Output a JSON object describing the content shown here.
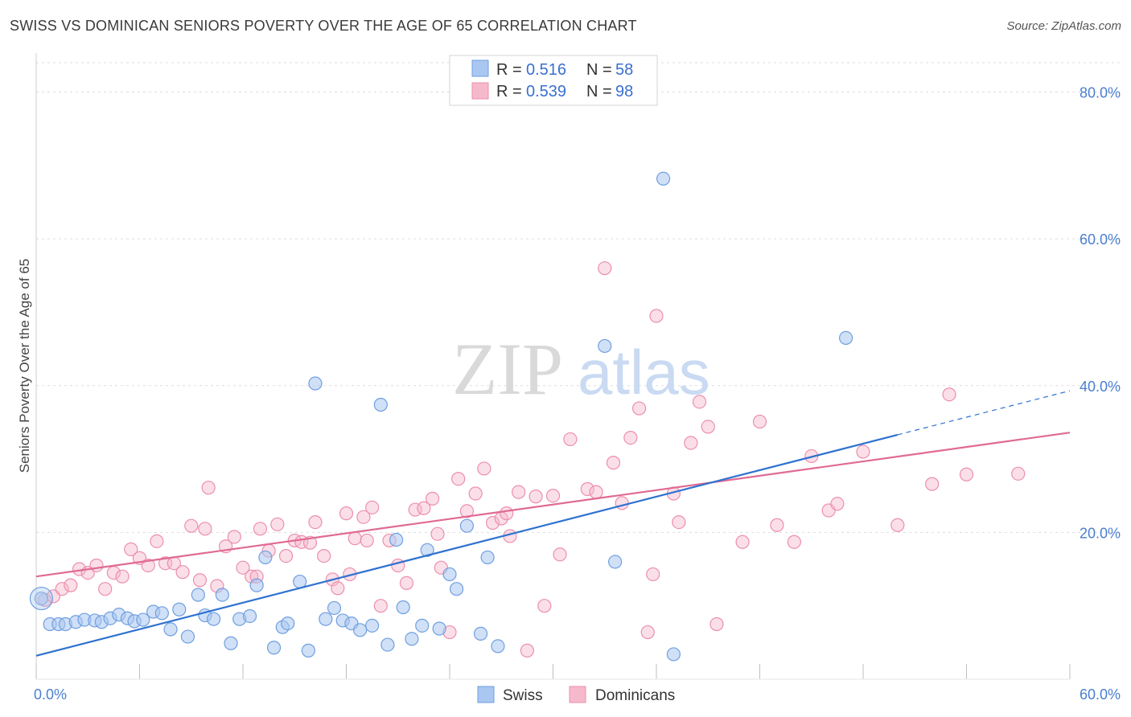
{
  "title": "SWISS VS DOMINICAN SENIORS POVERTY OVER THE AGE OF 65 CORRELATION CHART",
  "source": "Source: ZipAtlas.com",
  "watermark": {
    "zip": "ZIP",
    "atlas": "atlas"
  },
  "colors": {
    "swiss_fill": "#a9c7f0",
    "swiss_stroke": "#6f9fe0",
    "swiss_line": "#2f72d0",
    "dom_fill": "#f6b9cb",
    "dom_stroke": "#ec8fab",
    "dom_line": "#e06a94",
    "grid": "#dddddd",
    "tick_label": "#4a7fd0"
  },
  "legend": {
    "rows": [
      {
        "r_label": "R =",
        "r_value": "0.516",
        "n_label": "N =",
        "n_value": "58"
      },
      {
        "r_label": "R =",
        "r_value": "0.539",
        "n_label": "N =",
        "n_value": "98"
      }
    ]
  },
  "bottom_legend": [
    "Swiss",
    "Dominicans"
  ],
  "chart_data": {
    "type": "scatter",
    "title": "SWISS VS DOMINICAN SENIORS POVERTY OVER THE AGE OF 65 CORRELATION CHART",
    "xlabel": "",
    "ylabel": "Seniors Poverty Over the Age of 65",
    "xlim": [
      0,
      60
    ],
    "ylim": [
      0,
      84
    ],
    "x_tick_labels": [
      "0.0%",
      "60.0%"
    ],
    "y_ticks": [
      20,
      40,
      60,
      80
    ],
    "y_tick_labels": [
      "20.0%",
      "40.0%",
      "60.0%",
      "80.0%"
    ],
    "grid": true,
    "legend_position": "top-center",
    "series": [
      {
        "name": "Swiss",
        "r": 0.516,
        "n": 58,
        "trend": {
          "x0": 0,
          "y0": 3.2,
          "x1": 50,
          "y1": 33.3,
          "dashed_to_x": 60,
          "dashed_to_y": 39.3
        },
        "points": [
          [
            0.3,
            11.0
          ],
          [
            0.8,
            7.5
          ],
          [
            1.3,
            7.5
          ],
          [
            1.7,
            7.5
          ],
          [
            2.3,
            7.8
          ],
          [
            2.8,
            8.1
          ],
          [
            3.4,
            8.0
          ],
          [
            3.8,
            7.8
          ],
          [
            4.3,
            8.3
          ],
          [
            4.8,
            8.8
          ],
          [
            5.3,
            8.3
          ],
          [
            5.7,
            7.9
          ],
          [
            6.2,
            8.1
          ],
          [
            6.8,
            9.2
          ],
          [
            7.3,
            9.0
          ],
          [
            7.8,
            6.8
          ],
          [
            8.3,
            9.5
          ],
          [
            8.8,
            5.8
          ],
          [
            9.4,
            11.5
          ],
          [
            9.8,
            8.7
          ],
          [
            10.3,
            8.2
          ],
          [
            10.8,
            11.5
          ],
          [
            11.3,
            4.9
          ],
          [
            11.8,
            8.2
          ],
          [
            12.4,
            8.6
          ],
          [
            12.8,
            12.8
          ],
          [
            13.3,
            16.6
          ],
          [
            13.8,
            4.3
          ],
          [
            14.3,
            7.1
          ],
          [
            14.6,
            7.6
          ],
          [
            15.3,
            13.3
          ],
          [
            15.8,
            3.9
          ],
          [
            16.2,
            40.3
          ],
          [
            16.8,
            8.2
          ],
          [
            17.3,
            9.7
          ],
          [
            17.8,
            8.0
          ],
          [
            18.3,
            7.6
          ],
          [
            18.8,
            6.7
          ],
          [
            19.5,
            7.3
          ],
          [
            20.0,
            37.4
          ],
          [
            20.4,
            4.7
          ],
          [
            20.9,
            19.0
          ],
          [
            21.3,
            9.8
          ],
          [
            21.8,
            5.5
          ],
          [
            22.4,
            7.3
          ],
          [
            22.7,
            17.6
          ],
          [
            23.4,
            6.9
          ],
          [
            24.0,
            14.3
          ],
          [
            24.4,
            12.3
          ],
          [
            25.0,
            20.9
          ],
          [
            25.8,
            6.2
          ],
          [
            26.2,
            16.6
          ],
          [
            26.8,
            4.5
          ],
          [
            33.0,
            45.4
          ],
          [
            33.6,
            16.0
          ],
          [
            36.4,
            68.2
          ],
          [
            47.0,
            46.5
          ],
          [
            37.0,
            3.4
          ]
        ]
      },
      {
        "name": "Dominicans",
        "r": 0.539,
        "n": 98,
        "trend": {
          "x0": 0,
          "y0": 14.0,
          "x1": 60,
          "y1": 33.6
        },
        "points": [
          [
            0.5,
            10.8
          ],
          [
            1.0,
            11.3
          ],
          [
            1.5,
            12.3
          ],
          [
            2.0,
            12.8
          ],
          [
            2.5,
            15.0
          ],
          [
            3.0,
            14.5
          ],
          [
            3.5,
            15.5
          ],
          [
            4.0,
            12.3
          ],
          [
            4.5,
            14.5
          ],
          [
            5.0,
            14.0
          ],
          [
            5.5,
            17.7
          ],
          [
            6.0,
            16.5
          ],
          [
            6.5,
            15.5
          ],
          [
            7.0,
            18.8
          ],
          [
            7.5,
            15.8
          ],
          [
            8.0,
            15.8
          ],
          [
            8.5,
            14.6
          ],
          [
            9.0,
            20.9
          ],
          [
            9.5,
            13.5
          ],
          [
            10.0,
            26.1
          ],
          [
            10.5,
            12.7
          ],
          [
            11.0,
            18.1
          ],
          [
            11.5,
            19.4
          ],
          [
            12.0,
            15.2
          ],
          [
            12.5,
            14.0
          ],
          [
            13.0,
            20.5
          ],
          [
            13.5,
            17.5
          ],
          [
            14.0,
            21.1
          ],
          [
            14.5,
            16.8
          ],
          [
            15.0,
            18.9
          ],
          [
            15.4,
            18.7
          ],
          [
            15.9,
            18.6
          ],
          [
            16.2,
            21.4
          ],
          [
            16.7,
            16.8
          ],
          [
            17.2,
            13.6
          ],
          [
            17.5,
            12.4
          ],
          [
            18.0,
            22.6
          ],
          [
            18.5,
            19.2
          ],
          [
            19.0,
            22.1
          ],
          [
            19.5,
            23.4
          ],
          [
            20.0,
            10.0
          ],
          [
            20.5,
            18.9
          ],
          [
            21.0,
            15.5
          ],
          [
            21.5,
            13.1
          ],
          [
            22.0,
            23.1
          ],
          [
            22.5,
            23.3
          ],
          [
            23.0,
            24.6
          ],
          [
            23.5,
            15.2
          ],
          [
            24.0,
            6.4
          ],
          [
            24.5,
            27.3
          ],
          [
            25.0,
            22.9
          ],
          [
            25.5,
            25.3
          ],
          [
            26.0,
            28.7
          ],
          [
            26.5,
            21.3
          ],
          [
            27.0,
            21.9
          ],
          [
            27.5,
            19.5
          ],
          [
            28.0,
            25.5
          ],
          [
            28.5,
            3.9
          ],
          [
            29.0,
            24.9
          ],
          [
            29.5,
            10.0
          ],
          [
            30.0,
            25.0
          ],
          [
            30.4,
            17.0
          ],
          [
            31.0,
            32.7
          ],
          [
            32.0,
            25.9
          ],
          [
            32.5,
            25.5
          ],
          [
            33.0,
            56.0
          ],
          [
            33.5,
            29.5
          ],
          [
            34.0,
            24.0
          ],
          [
            34.5,
            32.9
          ],
          [
            35.0,
            36.9
          ],
          [
            35.5,
            6.4
          ],
          [
            35.8,
            14.3
          ],
          [
            36.0,
            49.5
          ],
          [
            37.0,
            25.3
          ],
          [
            37.3,
            21.4
          ],
          [
            38.0,
            32.2
          ],
          [
            38.5,
            37.8
          ],
          [
            39.0,
            34.4
          ],
          [
            39.5,
            7.5
          ],
          [
            41.0,
            18.7
          ],
          [
            42.0,
            35.1
          ],
          [
            43.0,
            21.0
          ],
          [
            44.0,
            18.7
          ],
          [
            45.0,
            30.4
          ],
          [
            46.0,
            23.0
          ],
          [
            46.5,
            23.9
          ],
          [
            48.0,
            31.0
          ],
          [
            50.0,
            21.0
          ],
          [
            52.0,
            26.6
          ],
          [
            53.0,
            38.8
          ],
          [
            54.0,
            27.9
          ],
          [
            57.0,
            28.0
          ],
          [
            23.3,
            19.8
          ],
          [
            27.3,
            22.6
          ],
          [
            19.2,
            18.9
          ],
          [
            18.2,
            14.3
          ],
          [
            12.8,
            14.0
          ],
          [
            9.8,
            20.5
          ]
        ]
      }
    ]
  }
}
